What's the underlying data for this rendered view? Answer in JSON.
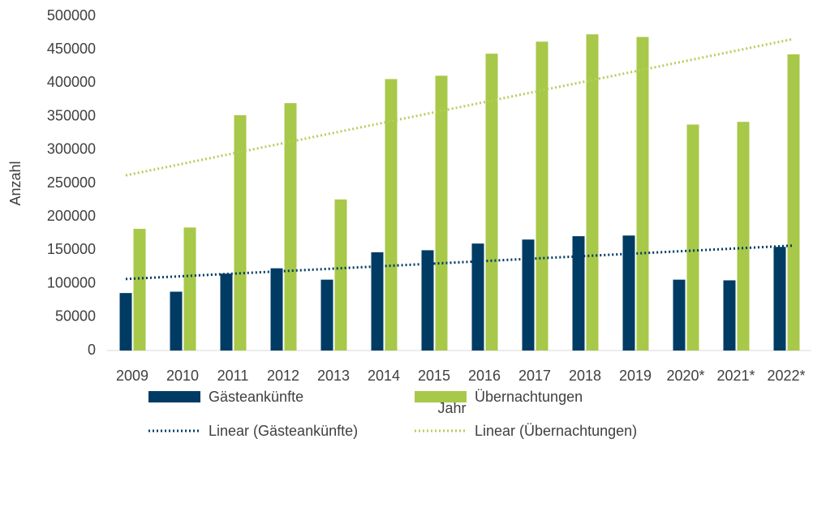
{
  "chart_data": {
    "type": "bar",
    "x_label": "Jahr",
    "y_label": "Anzahl",
    "categories": [
      "2009",
      "2010",
      "2011",
      "2012",
      "2013",
      "2014",
      "2015",
      "2016",
      "2017",
      "2018",
      "2019",
      "2020*",
      "2021*",
      "2022*"
    ],
    "series": [
      {
        "name": "Gästeankünfte",
        "color": "#003b64",
        "values": [
          86000,
          88000,
          115000,
          123000,
          106000,
          147000,
          150000,
          160000,
          166000,
          171000,
          172000,
          106000,
          105000,
          155000
        ]
      },
      {
        "name": "Übernachtungen",
        "color": "#a8c84a",
        "values": [
          182000,
          184000,
          352000,
          370000,
          226000,
          406000,
          411000,
          444000,
          462000,
          473000,
          469000,
          338000,
          342000,
          443000
        ]
      }
    ],
    "trendlines": [
      {
        "name": "Linear (Gästeankünfte)",
        "color": "#003b64",
        "values": [
          107000,
          157000
        ]
      },
      {
        "name": "Linear (Übernachtungen)",
        "color": "#b3cf5a",
        "values": [
          262000,
          466000
        ]
      }
    ],
    "ylim": [
      0,
      500000
    ],
    "yticks": [
      0,
      50000,
      100000,
      150000,
      200000,
      250000,
      300000,
      350000,
      400000,
      450000,
      500000
    ],
    "grid": false
  }
}
